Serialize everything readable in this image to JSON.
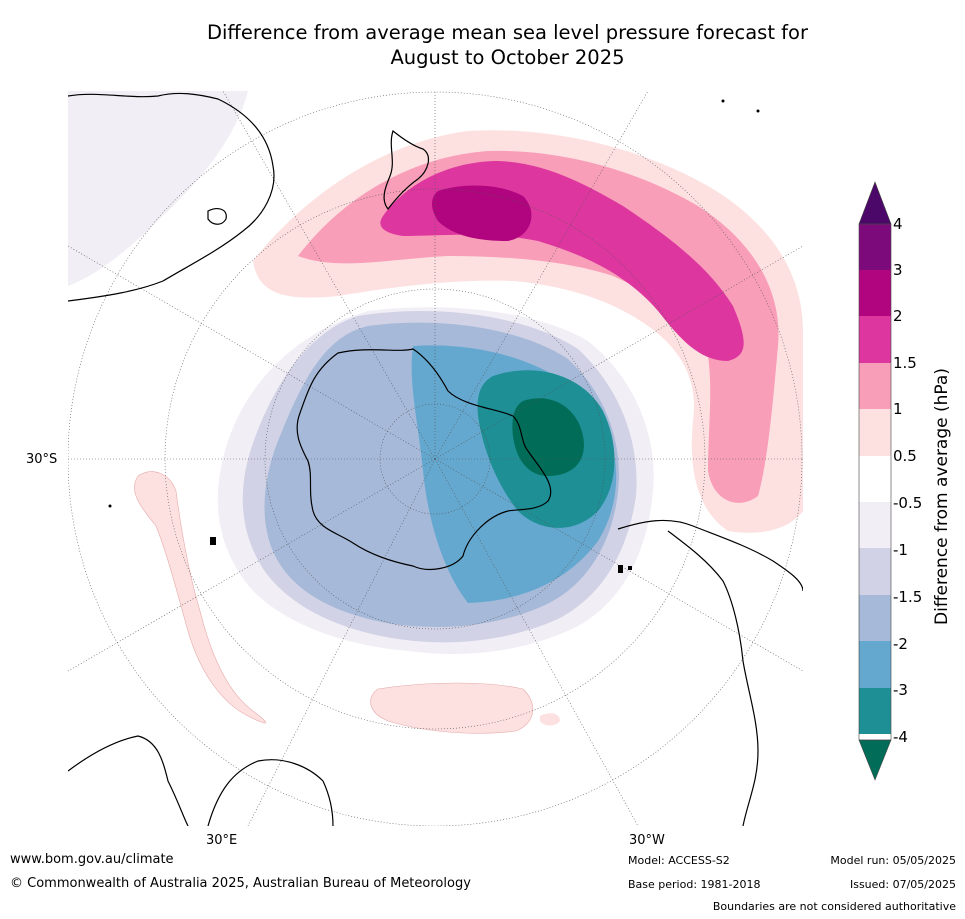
{
  "title": {
    "line1": "Difference from average mean sea level pressure forecast for",
    "line2": "August to October 2025"
  },
  "map": {
    "projection": "south-polar-stereographic",
    "coordinate_labels": {
      "lat_30s": "30°S",
      "lon_30e": "30°E",
      "lon_30w": "30°W"
    },
    "colors": {
      "land_outline": "#000000",
      "graticule": "#555555"
    }
  },
  "colorbar": {
    "title": "Difference from average (hPa)",
    "tick_labels": [
      "4",
      "3",
      "2",
      "1.5",
      "1",
      "0.5",
      "-0.5",
      "-1",
      "-1.5",
      "-2",
      "-3",
      "-4"
    ],
    "colors": {
      "over_4": "#4b0868",
      "3_to_4": "#7c0a7a",
      "2_to_3": "#b0057f",
      "1.5_to_2": "#dd379f",
      "1_to_1.5": "#f99eb8",
      "0.5_to_1": "#fde1e1",
      "neutral": "#ffffff",
      "-1_to_-0.5": "#f1eef5",
      "-1.5_to_-1": "#d1d2e5",
      "-2_to_-1.5": "#a6b9d9",
      "-3_to_-2": "#65a8cf",
      "-4_to_-3": "#1d8f95",
      "under_-4": "#016d58"
    }
  },
  "footer": {
    "url": "www.bom.gov.au/climate",
    "copyright": "© Commonwealth of Australia 2025, Australian Bureau of Meteorology",
    "model": "Model: ACCESS-S2",
    "base_period": "Base period: 1981-2018",
    "model_run": "Model run: 05/05/2025",
    "issued": "Issued: 07/05/2025",
    "disclaimer": "Boundaries are not considered authoritative"
  }
}
